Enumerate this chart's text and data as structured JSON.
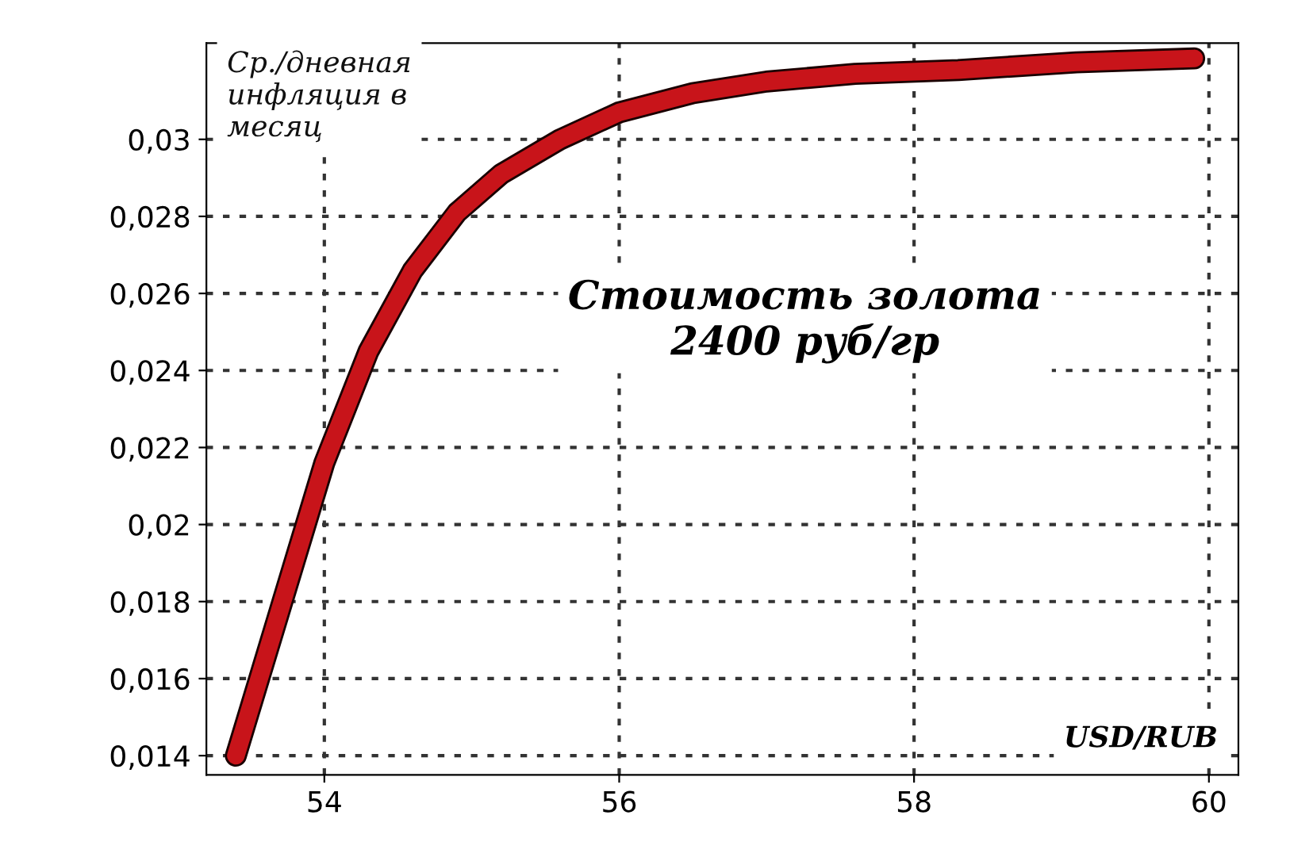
{
  "chart_data": {
    "type": "line",
    "ylabel": "Ср./дневная\nинфляция в\nмесяц",
    "xlabel": "USD/RUB",
    "annotations": [
      "Стоимость золота\n2400 руб/гр"
    ],
    "x": [
      53.4,
      53.7,
      54.0,
      54.3,
      54.6,
      54.9,
      55.2,
      55.6,
      56.0,
      56.5,
      57.0,
      57.6,
      58.3,
      59.1,
      59.9
    ],
    "series": [
      {
        "color": "#c8141a",
        "values": [
          0.014,
          0.0178,
          0.0216,
          0.0245,
          0.0266,
          0.0281,
          0.0291,
          0.03,
          0.0307,
          0.0312,
          0.0315,
          0.0317,
          0.0318,
          0.032,
          0.0321
        ]
      }
    ],
    "xlim": [
      53.2,
      60.2
    ],
    "ylim": [
      0.0135,
      0.0325
    ],
    "xticks": [
      54,
      56,
      58,
      60
    ],
    "yticks": [
      {
        "value": 0.014,
        "label": "0,014"
      },
      {
        "value": 0.016,
        "label": "0,016"
      },
      {
        "value": 0.018,
        "label": "0,018"
      },
      {
        "value": 0.02,
        "label": "0,02"
      },
      {
        "value": 0.022,
        "label": "0,022"
      },
      {
        "value": 0.024,
        "label": "0,024"
      },
      {
        "value": 0.026,
        "label": "0,026"
      },
      {
        "value": 0.028,
        "label": "0,028"
      },
      {
        "value": 0.03,
        "label": "0,03"
      }
    ],
    "grid": true,
    "line_style": "solid",
    "marker": "none",
    "legend": false
  }
}
